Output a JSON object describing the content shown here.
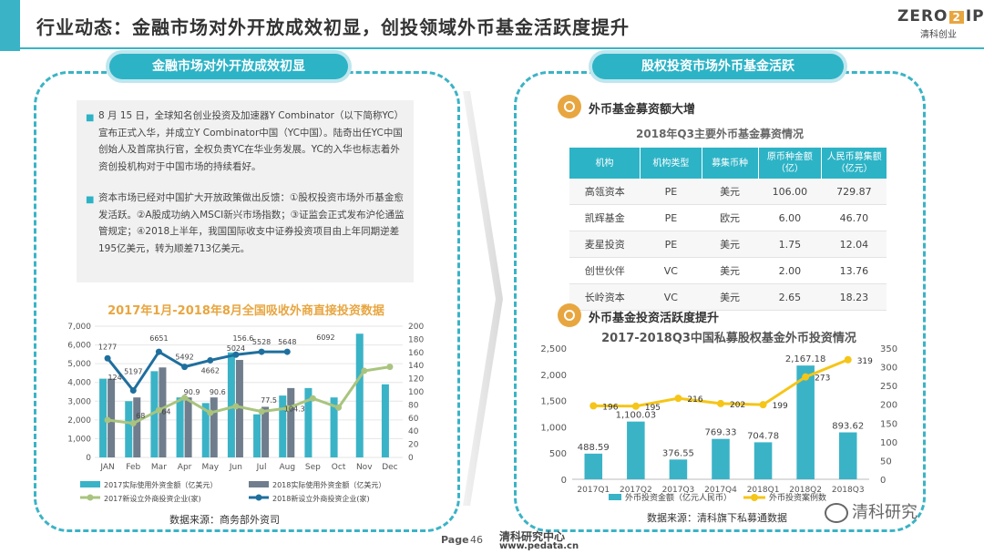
{
  "header": {
    "title": "行业动态：金融市场对外开放成效初显，创投领域外币基金活跃度提升",
    "logo_top_left": "ZERO",
    "logo_top_mid": "2",
    "logo_top_right": "IPO",
    "logo_sub": "清科创业"
  },
  "left": {
    "banner": "金融市场对外开放成效初显",
    "para1": "8 月 15 日，全球知名创业投资及加速器Y Combinator（以下简称YC）宣布正式入华，并成立Y Combinator中国（YC中国）。陆奇出任YC中国创始人及首席执行官，全权负责YC在华业务发展。YC的入华也标志着外资创投机构对于中国市场的持续看好。",
    "para2": "资本市场已经对中国扩大开放政策做出反馈：①股权投资市场外币基金愈发活跃。②A股成功纳入MSCI新兴市场指数；③证监会正式发布沪伦通监管规定；④2018上半年，我国国际收支中证券投资项目由上年同期逆差195亿美元，转为顺差713亿美元。",
    "chart_title": "2017年1月-2018年8月全国吸收外商直接投资数据",
    "source": "数据来源：商务部外资司"
  },
  "right": {
    "banner": "股权投资市场外币基金活跃",
    "section1": "外币基金募资额大增",
    "table_title": "2018年Q3主要外币基金募资情况",
    "table": {
      "headers": [
        "机构",
        "机构类型",
        "募集币种",
        "原币种金额（亿）",
        "人民币募集额（亿元）"
      ],
      "rows": [
        [
          "高瓴资本",
          "PE",
          "美元",
          "106.00",
          "729.87"
        ],
        [
          "凯辉基金",
          "PE",
          "欧元",
          "6.00",
          "46.70"
        ],
        [
          "麦星投资",
          "PE",
          "美元",
          "1.75",
          "12.04"
        ],
        [
          "创世伙伴",
          "VC",
          "美元",
          "2.00",
          "13.76"
        ],
        [
          "长岭资本",
          "VC",
          "美元",
          "2.65",
          "18.23"
        ]
      ]
    },
    "section2": "外币基金投资活跃度提升",
    "chart_title": "2017-2018Q3中国私募股权基金外币投资情况",
    "source": "数据来源：清科旗下私募通数据"
  },
  "footer": {
    "page_label": "Page",
    "page_number": "46",
    "brand": "清科研究中心",
    "url": "www.pedata.cn",
    "watermark": "清科研究"
  },
  "chart_data": [
    {
      "type": "bar",
      "title": "2017年1月-2018年8月全国吸收外商直接投资数据",
      "categories": [
        "JAN",
        "Feb",
        "Mar",
        "Apr",
        "May",
        "Jun",
        "Jul",
        "Aug",
        "Sep",
        "Oct",
        "Nov",
        "Dec"
      ],
      "ylim": [
        0,
        7000
      ],
      "y2lim": [
        0,
        200
      ],
      "yticks": [
        "0",
        "1,000",
        "2,000",
        "3,000",
        "4,000",
        "5,000",
        "6,000",
        "7,000"
      ],
      "y2ticks": [
        "0",
        "20",
        "40",
        "60",
        "80",
        "100",
        "120",
        "140",
        "160",
        "180",
        "200"
      ],
      "series": [
        {
          "name": "2017实际使用外资金额（亿美元）",
          "kind": "bar",
          "color": "#3ab3c7",
          "axis": "left",
          "values": [
            4200,
            3000,
            4600,
            3200,
            2900,
            5600,
            2300,
            3300,
            3700,
            3200,
            6600,
            3900
          ]
        },
        {
          "name": "2018实际使用外资金额（亿美元）",
          "kind": "bar",
          "color": "#6f7d8c",
          "axis": "left",
          "values": [
            4200,
            3200,
            4800,
            3200,
            3200,
            5200,
            2700,
            3700,
            null,
            null,
            null,
            null
          ]
        },
        {
          "name": "2017新设立外商投资企业(家)",
          "kind": "line",
          "color": "#a9c47f",
          "axis": "right",
          "values": [
            57,
            52,
            72,
            90.9,
            68,
            78,
            70,
            75,
            90,
            76,
            132,
            138
          ]
        },
        {
          "name": "2018新设立外商投资企业(家)",
          "kind": "line",
          "color": "#1f6f9e",
          "axis": "right",
          "values": [
            151,
            102,
            161,
            138,
            148,
            156.6,
            161,
            161,
            null,
            null,
            null,
            null
          ]
        }
      ],
      "annotations": [
        "1277",
        "5197",
        "6651",
        "5492",
        "4662",
        "5024",
        "5528",
        "5648",
        "6092",
        "90.9",
        "90.6",
        "156.6",
        "77.5",
        "104.3",
        "68",
        "124",
        "64"
      ]
    },
    {
      "type": "bar",
      "title": "2017-2018Q3中国私募股权基金外币投资情况",
      "categories": [
        "2017Q1",
        "2017Q2",
        "2017Q3",
        "2017Q4",
        "2018Q1",
        "2018Q2",
        "2018Q3"
      ],
      "ylim": [
        0,
        2500
      ],
      "y2lim": [
        0,
        350
      ],
      "yticks": [
        "0",
        "500",
        "1,000",
        "1,500",
        "2,000",
        "2,500"
      ],
      "y2ticks": [
        "0",
        "50",
        "100",
        "150",
        "200",
        "250",
        "300",
        "350"
      ],
      "series": [
        {
          "name": "外币投资金额（亿元人民币）",
          "kind": "bar",
          "color": "#3ab3c7",
          "axis": "left",
          "values": [
            488.59,
            1100.03,
            376.55,
            769.33,
            704.78,
            2167.18,
            893.62
          ],
          "labels": [
            "488.59",
            "1,100.03",
            "376.55",
            "769.33",
            "704.78",
            "2,167.18",
            "893.62"
          ]
        },
        {
          "name": "外币投资案例数",
          "kind": "line",
          "color": "#f5c518",
          "axis": "right",
          "values": [
            196,
            195,
            216,
            202,
            199,
            273,
            319
          ],
          "labels": [
            "196",
            "195",
            "216",
            "202",
            "199",
            "273",
            "319"
          ]
        }
      ]
    }
  ]
}
